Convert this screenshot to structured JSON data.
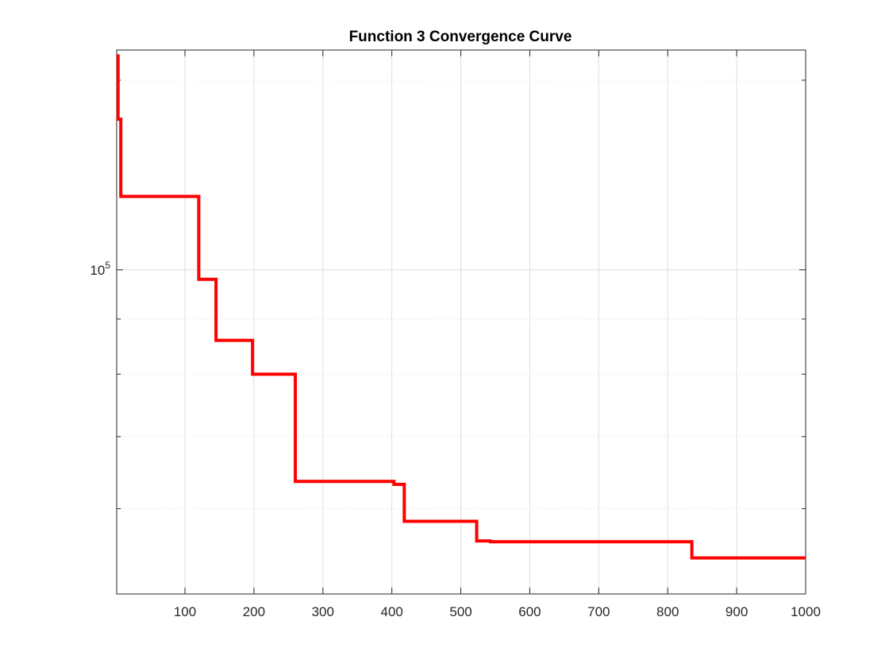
{
  "chart_data": {
    "type": "line",
    "title": "Function 3 Convergence Curve",
    "xlabel": "",
    "ylabel": "",
    "xlim": [
      1,
      1000
    ],
    "ylim": [
      50000,
      160000
    ],
    "yscale": "log",
    "grid": true,
    "x_ticks": [
      100,
      200,
      300,
      400,
      500,
      600,
      700,
      800,
      900,
      1000
    ],
    "x_tick_labels": [
      "100",
      "200",
      "300",
      "400",
      "500",
      "600",
      "700",
      "800",
      "900",
      "1000"
    ],
    "y_ticks": [
      100000
    ],
    "y_tick_label_base": "10",
    "y_tick_label_exp": "5",
    "y_minor_ticks": [
      60000,
      70000,
      80000,
      90000,
      150000
    ],
    "color": "#ff0000",
    "series": [
      {
        "x": [
          1,
          3,
          3,
          7,
          7,
          120,
          120,
          145,
          145,
          198,
          198,
          260,
          260,
          403,
          403,
          418,
          418,
          523,
          523,
          543,
          543,
          835,
          835,
          1000
        ],
        "y": [
          158000,
          158000,
          138000,
          138000,
          117000,
          117000,
          98000,
          98000,
          86000,
          86000,
          80000,
          80000,
          63600,
          63600,
          63200,
          63200,
          58400,
          58400,
          56000,
          56000,
          55900,
          55900,
          54000,
          54000
        ]
      }
    ]
  }
}
